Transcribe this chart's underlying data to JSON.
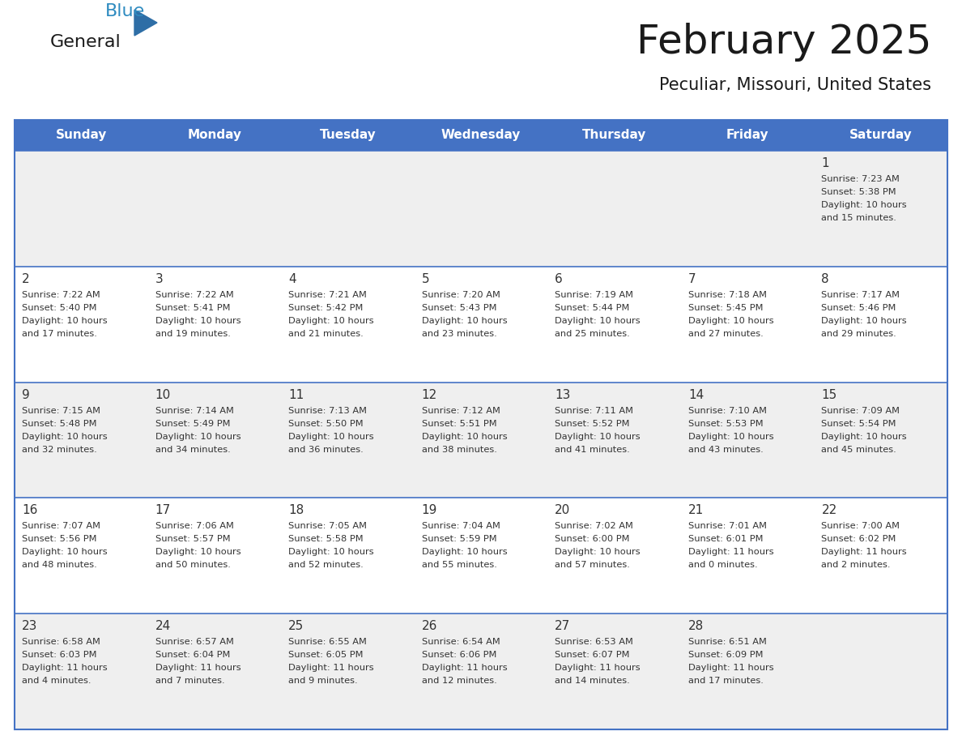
{
  "title": "February 2025",
  "subtitle": "Peculiar, Missouri, United States",
  "header_bg": "#4472C4",
  "header_text_color": "#FFFFFF",
  "cell_bg_odd": "#EFEFEF",
  "cell_bg_even": "#FFFFFF",
  "text_color": "#333333",
  "day_number_color": "#333333",
  "days_of_week": [
    "Sunday",
    "Monday",
    "Tuesday",
    "Wednesday",
    "Thursday",
    "Friday",
    "Saturday"
  ],
  "weeks": [
    [
      {
        "day": null,
        "sunrise": null,
        "sunset": null,
        "daylight": null
      },
      {
        "day": null,
        "sunrise": null,
        "sunset": null,
        "daylight": null
      },
      {
        "day": null,
        "sunrise": null,
        "sunset": null,
        "daylight": null
      },
      {
        "day": null,
        "sunrise": null,
        "sunset": null,
        "daylight": null
      },
      {
        "day": null,
        "sunrise": null,
        "sunset": null,
        "daylight": null
      },
      {
        "day": null,
        "sunrise": null,
        "sunset": null,
        "daylight": null
      },
      {
        "day": 1,
        "sunrise": "7:23 AM",
        "sunset": "5:38 PM",
        "daylight": "10 hours\nand 15 minutes."
      }
    ],
    [
      {
        "day": 2,
        "sunrise": "7:22 AM",
        "sunset": "5:40 PM",
        "daylight": "10 hours\nand 17 minutes."
      },
      {
        "day": 3,
        "sunrise": "7:22 AM",
        "sunset": "5:41 PM",
        "daylight": "10 hours\nand 19 minutes."
      },
      {
        "day": 4,
        "sunrise": "7:21 AM",
        "sunset": "5:42 PM",
        "daylight": "10 hours\nand 21 minutes."
      },
      {
        "day": 5,
        "sunrise": "7:20 AM",
        "sunset": "5:43 PM",
        "daylight": "10 hours\nand 23 minutes."
      },
      {
        "day": 6,
        "sunrise": "7:19 AM",
        "sunset": "5:44 PM",
        "daylight": "10 hours\nand 25 minutes."
      },
      {
        "day": 7,
        "sunrise": "7:18 AM",
        "sunset": "5:45 PM",
        "daylight": "10 hours\nand 27 minutes."
      },
      {
        "day": 8,
        "sunrise": "7:17 AM",
        "sunset": "5:46 PM",
        "daylight": "10 hours\nand 29 minutes."
      }
    ],
    [
      {
        "day": 9,
        "sunrise": "7:15 AM",
        "sunset": "5:48 PM",
        "daylight": "10 hours\nand 32 minutes."
      },
      {
        "day": 10,
        "sunrise": "7:14 AM",
        "sunset": "5:49 PM",
        "daylight": "10 hours\nand 34 minutes."
      },
      {
        "day": 11,
        "sunrise": "7:13 AM",
        "sunset": "5:50 PM",
        "daylight": "10 hours\nand 36 minutes."
      },
      {
        "day": 12,
        "sunrise": "7:12 AM",
        "sunset": "5:51 PM",
        "daylight": "10 hours\nand 38 minutes."
      },
      {
        "day": 13,
        "sunrise": "7:11 AM",
        "sunset": "5:52 PM",
        "daylight": "10 hours\nand 41 minutes."
      },
      {
        "day": 14,
        "sunrise": "7:10 AM",
        "sunset": "5:53 PM",
        "daylight": "10 hours\nand 43 minutes."
      },
      {
        "day": 15,
        "sunrise": "7:09 AM",
        "sunset": "5:54 PM",
        "daylight": "10 hours\nand 45 minutes."
      }
    ],
    [
      {
        "day": 16,
        "sunrise": "7:07 AM",
        "sunset": "5:56 PM",
        "daylight": "10 hours\nand 48 minutes."
      },
      {
        "day": 17,
        "sunrise": "7:06 AM",
        "sunset": "5:57 PM",
        "daylight": "10 hours\nand 50 minutes."
      },
      {
        "day": 18,
        "sunrise": "7:05 AM",
        "sunset": "5:58 PM",
        "daylight": "10 hours\nand 52 minutes."
      },
      {
        "day": 19,
        "sunrise": "7:04 AM",
        "sunset": "5:59 PM",
        "daylight": "10 hours\nand 55 minutes."
      },
      {
        "day": 20,
        "sunrise": "7:02 AM",
        "sunset": "6:00 PM",
        "daylight": "10 hours\nand 57 minutes."
      },
      {
        "day": 21,
        "sunrise": "7:01 AM",
        "sunset": "6:01 PM",
        "daylight": "11 hours\nand 0 minutes."
      },
      {
        "day": 22,
        "sunrise": "7:00 AM",
        "sunset": "6:02 PM",
        "daylight": "11 hours\nand 2 minutes."
      }
    ],
    [
      {
        "day": 23,
        "sunrise": "6:58 AM",
        "sunset": "6:03 PM",
        "daylight": "11 hours\nand 4 minutes."
      },
      {
        "day": 24,
        "sunrise": "6:57 AM",
        "sunset": "6:04 PM",
        "daylight": "11 hours\nand 7 minutes."
      },
      {
        "day": 25,
        "sunrise": "6:55 AM",
        "sunset": "6:05 PM",
        "daylight": "11 hours\nand 9 minutes."
      },
      {
        "day": 26,
        "sunrise": "6:54 AM",
        "sunset": "6:06 PM",
        "daylight": "11 hours\nand 12 minutes."
      },
      {
        "day": 27,
        "sunrise": "6:53 AM",
        "sunset": "6:07 PM",
        "daylight": "11 hours\nand 14 minutes."
      },
      {
        "day": 28,
        "sunrise": "6:51 AM",
        "sunset": "6:09 PM",
        "daylight": "11 hours\nand 17 minutes."
      },
      {
        "day": null,
        "sunrise": null,
        "sunset": null,
        "daylight": null
      }
    ]
  ],
  "logo_color_general": "#1a1a1a",
  "logo_color_blue": "#2E8BC0",
  "logo_triangle_color": "#2E6EA6",
  "border_color": "#4472C4",
  "week_sep_color": "#4472C4",
  "title_color": "#1a1a1a",
  "subtitle_color": "#1a1a1a"
}
